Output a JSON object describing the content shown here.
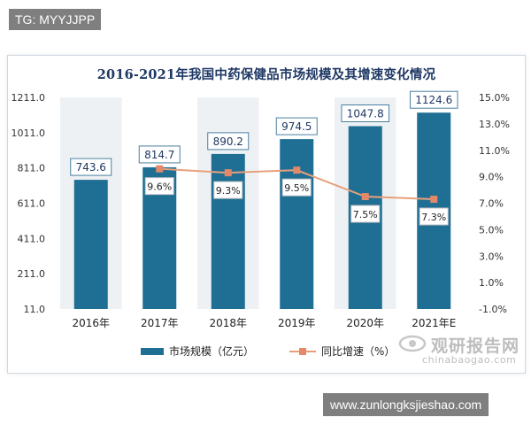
{
  "tag_label": "TG: MYYJJPP",
  "site_url": "www.zunlongksjieshao.com",
  "watermark": {
    "text": "观研报告网",
    "url": "chinabaogao.com"
  },
  "chart_data": {
    "type": "bar+line",
    "title": "2016-2021年我国中药保健品市场规模及其增速变化情况",
    "categories": [
      "2016年",
      "2017年",
      "2018年",
      "2019年",
      "2020年",
      "2021年E"
    ],
    "series": [
      {
        "name": "市场规模（亿元）",
        "type": "bar",
        "axis": "left",
        "color": "#1f6f95",
        "values": [
          743.6,
          814.7,
          890.2,
          974.5,
          1047.8,
          1124.6
        ],
        "labels": [
          "743.6",
          "814.7",
          "890.2",
          "974.5",
          "1047.8",
          "1124.6"
        ]
      },
      {
        "name": "同比增速（%）",
        "type": "line",
        "axis": "right",
        "color": "#e8a07a",
        "values": [
          null,
          9.6,
          9.3,
          9.5,
          7.5,
          7.3
        ],
        "labels": [
          "",
          "9.6%",
          "9.3%",
          "9.5%",
          "7.5%",
          "7.3%"
        ]
      }
    ],
    "y_left": {
      "range": [
        11.0,
        1211.0
      ],
      "ticks": [
        "1211.0",
        "1011.0",
        "811.0",
        "611.0",
        "411.0",
        "211.0",
        "11.0"
      ]
    },
    "y_right": {
      "range": [
        -1.0,
        15.0
      ],
      "ticks": [
        "15.0%",
        "13.0%",
        "11.0%",
        "9.0%",
        "7.0%",
        "5.0%",
        "3.0%",
        "1.0%",
        "-1.0%"
      ]
    },
    "grid": "vertical bands",
    "legend_position": "bottom"
  }
}
